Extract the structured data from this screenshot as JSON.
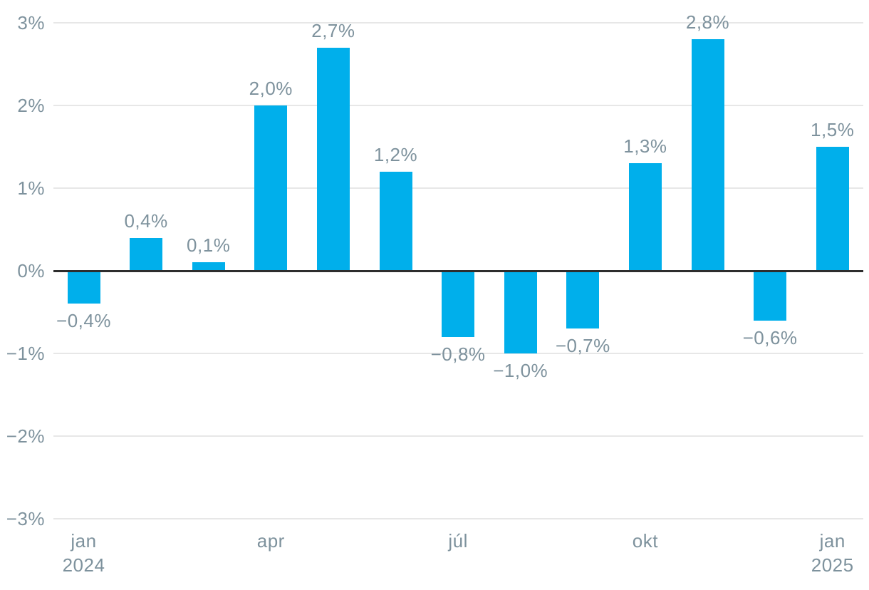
{
  "chart_data": {
    "type": "bar",
    "title": "",
    "xlabel": "",
    "ylabel": "",
    "ylim": [
      -3,
      3
    ],
    "grid": true,
    "legend": "none",
    "x_range_note": "13 monthly bars from jan 2024 to jan 2025",
    "values": [
      -0.4,
      0.4,
      0.1,
      2.0,
      2.7,
      1.2,
      -0.8,
      -1.0,
      -0.7,
      1.3,
      2.8,
      -0.6,
      1.5
    ],
    "data_labels": [
      "−0,4%",
      "0,4%",
      "0,1%",
      "2,0%",
      "2,7%",
      "1,2%",
      "−0,8%",
      "−1,0%",
      "−0,7%",
      "1,3%",
      "2,8%",
      "−0,6%",
      "1,5%"
    ],
    "y_ticks": [
      {
        "value": 3,
        "label": "3%"
      },
      {
        "value": 2,
        "label": "2%"
      },
      {
        "value": 1,
        "label": "1%"
      },
      {
        "value": 0,
        "label": "0%"
      },
      {
        "value": -1,
        "label": "−1%"
      },
      {
        "value": -2,
        "label": "−2%"
      },
      {
        "value": -3,
        "label": "−3%"
      }
    ],
    "x_ticks": [
      {
        "index": 0,
        "line1": "jan",
        "line2": "2024"
      },
      {
        "index": 3,
        "line1": "apr",
        "line2": ""
      },
      {
        "index": 6,
        "line1": "júl",
        "line2": ""
      },
      {
        "index": 9,
        "line1": "okt",
        "line2": ""
      },
      {
        "index": 12,
        "line1": "jan",
        "line2": "2025"
      }
    ],
    "colors": {
      "bar": "#00afeb",
      "grid": "#e7e7e7",
      "zero_line": "#2d2d2d",
      "label_text": "#7e929d"
    }
  }
}
